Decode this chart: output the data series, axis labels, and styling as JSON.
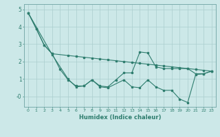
{
  "title": "",
  "xlabel": "Humidex (Indice chaleur)",
  "background_color": "#cce8e8",
  "line_color": "#2e7d6e",
  "xlim": [
    -0.5,
    23.5
  ],
  "ylim": [
    -0.6,
    5.3
  ],
  "yticks": [
    0,
    1,
    2,
    3,
    4,
    5
  ],
  "ytick_labels": [
    "-0",
    "1",
    "2",
    "3",
    "4",
    "5"
  ],
  "xticks": [
    0,
    1,
    2,
    3,
    4,
    5,
    6,
    7,
    8,
    9,
    10,
    11,
    12,
    13,
    14,
    15,
    16,
    17,
    18,
    19,
    20,
    21,
    22,
    23
  ],
  "line1_x": [
    0,
    1,
    2,
    3,
    4,
    5,
    6,
    7,
    8,
    9,
    10,
    11,
    12,
    13,
    14,
    15,
    16,
    17,
    18,
    19,
    20,
    21,
    22,
    23
  ],
  "line1_y": [
    4.8,
    3.9,
    2.95,
    2.45,
    1.55,
    0.95,
    0.6,
    0.6,
    0.95,
    0.6,
    0.55,
    0.95,
    1.35,
    1.35,
    2.55,
    2.5,
    1.7,
    1.6,
    1.6,
    1.6,
    1.6,
    1.3,
    1.3,
    1.45
  ],
  "line2_x": [
    0,
    3,
    5,
    6,
    7,
    8,
    9,
    10,
    12,
    13,
    14,
    15,
    16,
    17,
    18,
    19,
    20,
    21,
    22,
    23
  ],
  "line2_y": [
    4.8,
    2.4,
    1.0,
    0.55,
    0.6,
    0.95,
    0.55,
    0.5,
    0.95,
    0.55,
    0.5,
    0.95,
    0.55,
    0.35,
    0.35,
    -0.15,
    -0.35,
    1.25,
    1.3,
    1.45
  ],
  "line3_x": [
    0,
    1,
    2,
    3,
    5,
    6,
    7,
    8,
    9,
    10,
    11,
    12,
    13,
    14,
    15,
    16,
    17,
    18,
    19,
    20,
    21,
    22,
    23
  ],
  "line3_y": [
    4.8,
    3.9,
    2.95,
    2.45,
    2.35,
    2.3,
    2.25,
    2.2,
    2.15,
    2.1,
    2.05,
    2.0,
    1.95,
    1.9,
    1.85,
    1.8,
    1.75,
    1.7,
    1.65,
    1.6,
    1.55,
    1.5,
    1.45
  ],
  "grid_color": "#aacece",
  "spine_color": "#7aacac"
}
